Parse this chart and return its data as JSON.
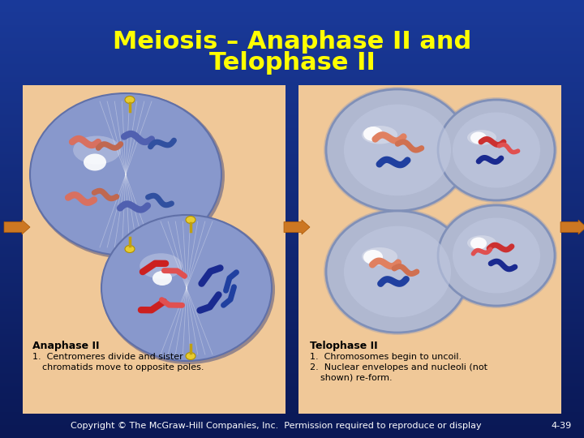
{
  "title_line1": "Meiosis – Anaphase II and",
  "title_line2": "Telophase II",
  "title_color": "#FFFF00",
  "title_fontsize": 22,
  "title_fontweight": "bold",
  "bg_top_color": "#0a1855",
  "bg_bottom_color": "#1a3a9a",
  "panel_bg": "#f0c898",
  "copyright_text": "Copyright © The McGraw-Hill Companies, Inc.  Permission required to reproduce or display",
  "copyright_color": "#ffffff",
  "copyright_fontsize": 8,
  "page_num": "4-39",
  "arrow_color": "#cc7722",
  "cell_color": "#8898cc",
  "cell_edge": "#5568aa",
  "telo_cell_color": "#aab0cc",
  "telo_cell_edge": "#8090bb"
}
